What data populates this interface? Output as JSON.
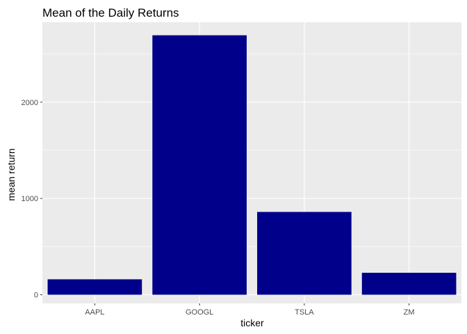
{
  "chart_data": {
    "type": "bar",
    "title": "Mean of the Daily Returns",
    "xlabel": "ticker",
    "ylabel": "mean return",
    "categories": [
      "AAPL",
      "GOOGL",
      "TSLA",
      "ZM"
    ],
    "values": [
      160,
      2695,
      860,
      228
    ],
    "ylim": [
      -90,
      2830
    ],
    "yticks": [
      0,
      1000,
      2000
    ],
    "ytick_labels": [
      "0",
      "1000",
      "2000"
    ],
    "grid": true,
    "legend": "none",
    "colors": {
      "bar": "#00008B",
      "panel": "#EBEBEB",
      "grid_major": "#FFFFFF",
      "tick": "#333333"
    }
  }
}
